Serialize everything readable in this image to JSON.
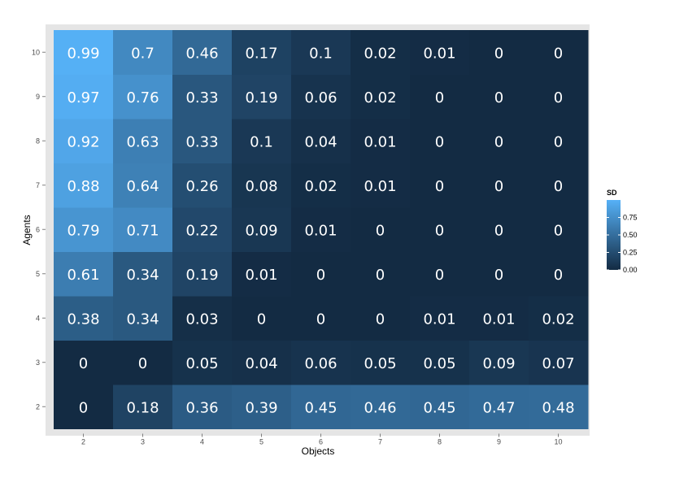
{
  "chart_data": {
    "type": "heatmap",
    "title": "",
    "xlabel": "Objects",
    "ylabel": "Agents",
    "x": [
      2,
      3,
      4,
      5,
      6,
      7,
      8,
      9,
      10
    ],
    "y": [
      2,
      3,
      4,
      5,
      6,
      7,
      8,
      9,
      10
    ],
    "values": [
      [
        0,
        0.18,
        0.36,
        0.39,
        0.45,
        0.46,
        0.45,
        0.47,
        0.48
      ],
      [
        0,
        0,
        0.05,
        0.04,
        0.06,
        0.05,
        0.05,
        0.09,
        0.07
      ],
      [
        0.38,
        0.34,
        0.03,
        0,
        0,
        0,
        0.01,
        0.01,
        0.02
      ],
      [
        0.61,
        0.34,
        0.19,
        0.01,
        0,
        0,
        0,
        0,
        0
      ],
      [
        0.79,
        0.71,
        0.22,
        0.09,
        0.01,
        0,
        0,
        0,
        0
      ],
      [
        0.88,
        0.64,
        0.26,
        0.08,
        0.02,
        0.01,
        0,
        0,
        0
      ],
      [
        0.92,
        0.63,
        0.33,
        0.1,
        0.04,
        0.01,
        0,
        0,
        0
      ],
      [
        0.97,
        0.76,
        0.33,
        0.19,
        0.06,
        0.02,
        0,
        0,
        0
      ],
      [
        0.99,
        0.7,
        0.46,
        0.17,
        0.1,
        0.02,
        0.01,
        0,
        0
      ]
    ],
    "colorscale": {
      "title": "SD",
      "low_color": "#132B43",
      "high_color": "#56B1F7",
      "range": [
        0,
        1
      ],
      "ticks": [
        0.0,
        0.25,
        0.5,
        0.75
      ],
      "tick_labels": [
        "0.00",
        "0.25",
        "0.50",
        "0.75"
      ]
    },
    "panel_background": "#e5e5e5",
    "legend_position": "right"
  }
}
